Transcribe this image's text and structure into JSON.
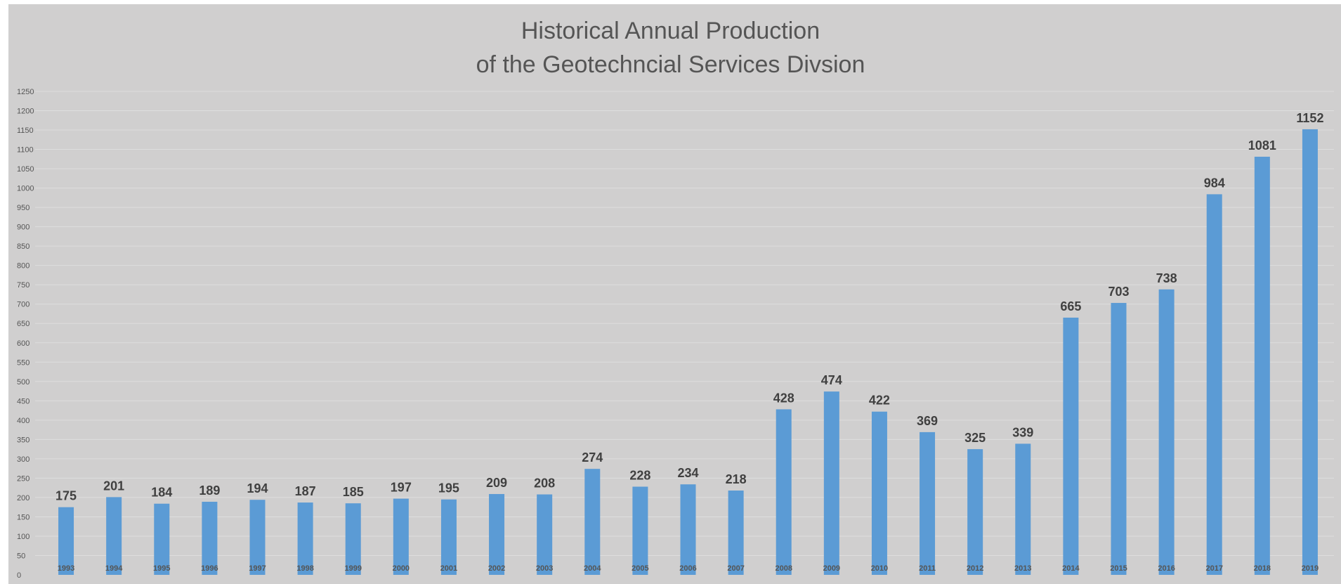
{
  "chart_data": {
    "type": "bar",
    "title": "Historical Annual Production of the Geotechncial Services Divsion",
    "title_lines": [
      "Historical Annual Production",
      "of the Geotechncial Services Divsion"
    ],
    "categories": [
      "1993",
      "1994",
      "1995",
      "1996",
      "1997",
      "1998",
      "1999",
      "2000",
      "2001",
      "2002",
      "2003",
      "2004",
      "2005",
      "2006",
      "2007",
      "2008",
      "2009",
      "2010",
      "2011",
      "2012",
      "2013",
      "2014",
      "2015",
      "2016",
      "2017",
      "2018",
      "2019"
    ],
    "values": [
      175,
      201,
      184,
      189,
      194,
      187,
      185,
      197,
      195,
      209,
      208,
      274,
      228,
      234,
      218,
      428,
      474,
      422,
      369,
      325,
      339,
      665,
      703,
      738,
      984,
      1081,
      1152
    ],
    "xlabel": "",
    "ylabel": "",
    "ylim": [
      0,
      1250
    ],
    "ytick_step": 50,
    "grid": true,
    "legend": "none",
    "bar_color": "#5b9bd5",
    "background_color": "#d0cfcf",
    "gridline_color": "#dedede"
  }
}
